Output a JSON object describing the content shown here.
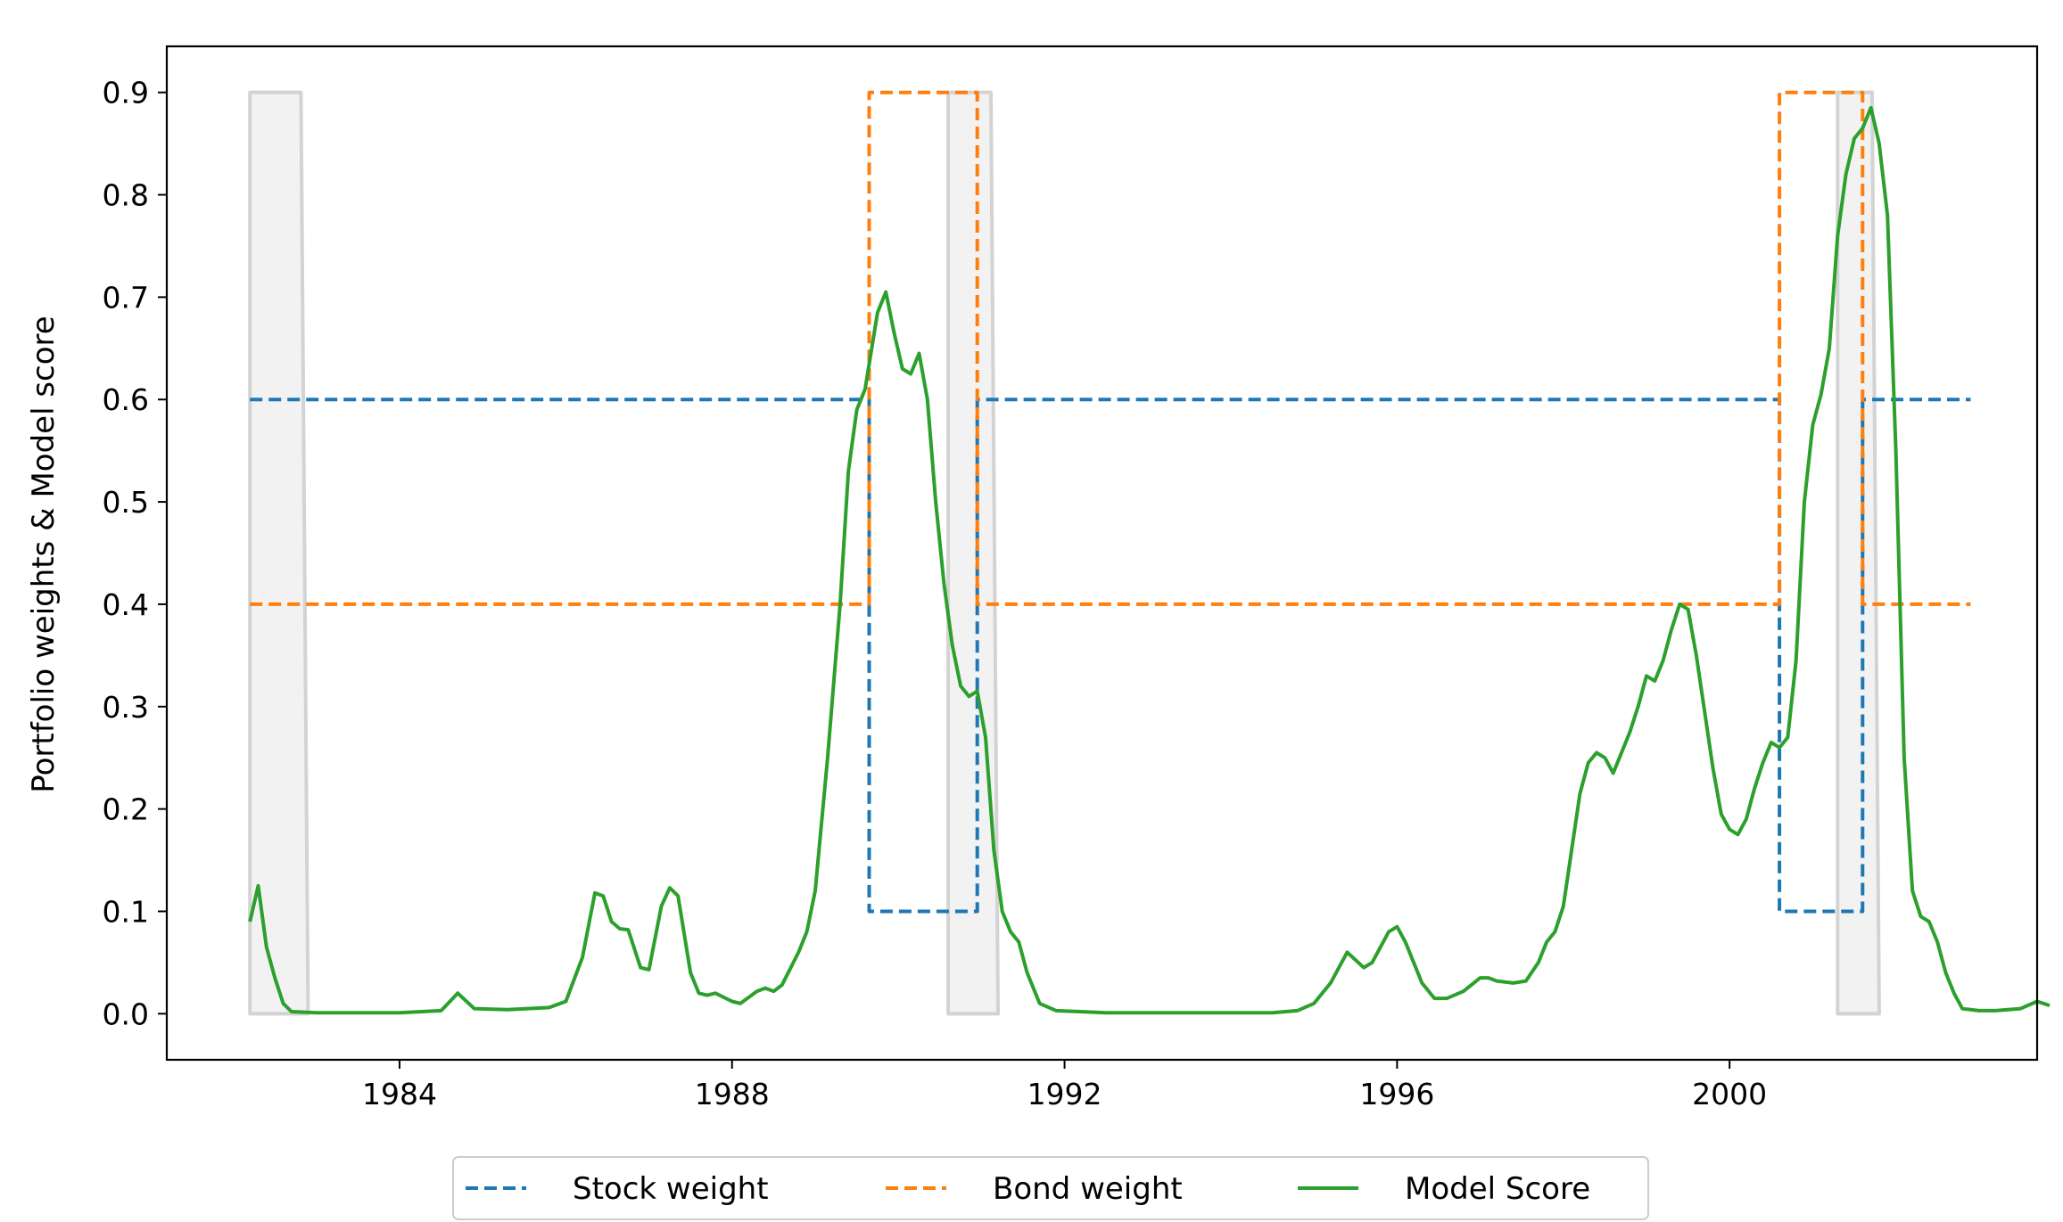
{
  "chart_data": {
    "type": "line",
    "title": "",
    "xlabel": "",
    "ylabel": "Portfolio weights & Model score",
    "xlim": [
      1981.2,
      2003.7
    ],
    "ylim": [
      -0.045,
      0.945
    ],
    "xticks": [
      1984,
      1988,
      1992,
      1996,
      2000
    ],
    "xtick_labels": [
      "1984",
      "1988",
      "1992",
      "1996",
      "2000"
    ],
    "yticks": [
      0.0,
      0.1,
      0.2,
      0.3,
      0.4,
      0.5,
      0.6,
      0.7,
      0.8,
      0.9
    ],
    "ytick_labels": [
      "0.0",
      "0.1",
      "0.2",
      "0.3",
      "0.4",
      "0.5",
      "0.6",
      "0.7",
      "0.8",
      "0.9"
    ],
    "grid": false,
    "legend_position": "bottom-center",
    "shaded_regions": {
      "color": "#d3d3d3",
      "height": 0.9,
      "periods": [
        [
          1982.2,
          1982.9
        ],
        [
          1990.6,
          1991.2
        ],
        [
          2001.3,
          2001.8
        ]
      ]
    },
    "series": [
      {
        "name": "Stock weight",
        "style": "dashed",
        "color": "#1f77b4",
        "points": [
          [
            1982.2,
            0.6
          ],
          [
            1989.65,
            0.6
          ],
          [
            1989.65,
            0.1
          ],
          [
            1990.95,
            0.1
          ],
          [
            1990.95,
            0.6
          ],
          [
            2000.6,
            0.6
          ],
          [
            2000.6,
            0.1
          ],
          [
            2001.6,
            0.1
          ],
          [
            2001.6,
            0.6
          ],
          [
            2002.9,
            0.6
          ]
        ]
      },
      {
        "name": "Bond weight",
        "style": "dashed",
        "color": "#ff7f0e",
        "points": [
          [
            1982.2,
            0.4
          ],
          [
            1989.65,
            0.4
          ],
          [
            1989.65,
            0.9
          ],
          [
            1990.95,
            0.9
          ],
          [
            1990.95,
            0.4
          ],
          [
            2000.6,
            0.4
          ],
          [
            2000.6,
            0.9
          ],
          [
            2001.6,
            0.9
          ],
          [
            2001.6,
            0.4
          ],
          [
            2002.9,
            0.4
          ]
        ]
      },
      {
        "name": "Model Score",
        "style": "solid",
        "color": "#2ca02c",
        "points": [
          [
            1982.2,
            0.09
          ],
          [
            1982.3,
            0.125
          ],
          [
            1982.4,
            0.065
          ],
          [
            1982.5,
            0.035
          ],
          [
            1982.6,
            0.01
          ],
          [
            1982.7,
            0.002
          ],
          [
            1983.0,
            0.001
          ],
          [
            1984.0,
            0.001
          ],
          [
            1984.5,
            0.003
          ],
          [
            1984.7,
            0.02
          ],
          [
            1984.9,
            0.005
          ],
          [
            1985.3,
            0.004
          ],
          [
            1985.8,
            0.006
          ],
          [
            1986.0,
            0.012
          ],
          [
            1986.2,
            0.055
          ],
          [
            1986.35,
            0.118
          ],
          [
            1986.45,
            0.115
          ],
          [
            1986.55,
            0.09
          ],
          [
            1986.65,
            0.083
          ],
          [
            1986.75,
            0.082
          ],
          [
            1986.9,
            0.045
          ],
          [
            1987.0,
            0.043
          ],
          [
            1987.15,
            0.105
          ],
          [
            1987.25,
            0.123
          ],
          [
            1987.35,
            0.115
          ],
          [
            1987.5,
            0.04
          ],
          [
            1987.6,
            0.02
          ],
          [
            1987.7,
            0.018
          ],
          [
            1987.8,
            0.02
          ],
          [
            1988.0,
            0.012
          ],
          [
            1988.1,
            0.01
          ],
          [
            1988.3,
            0.022
          ],
          [
            1988.4,
            0.025
          ],
          [
            1988.5,
            0.022
          ],
          [
            1988.6,
            0.028
          ],
          [
            1988.8,
            0.06
          ],
          [
            1988.9,
            0.08
          ],
          [
            1989.0,
            0.12
          ],
          [
            1989.15,
            0.25
          ],
          [
            1989.3,
            0.4
          ],
          [
            1989.4,
            0.53
          ],
          [
            1989.5,
            0.59
          ],
          [
            1989.6,
            0.61
          ],
          [
            1989.75,
            0.685
          ],
          [
            1989.85,
            0.705
          ],
          [
            1989.95,
            0.665
          ],
          [
            1990.05,
            0.63
          ],
          [
            1990.15,
            0.625
          ],
          [
            1990.25,
            0.645
          ],
          [
            1990.35,
            0.6
          ],
          [
            1990.45,
            0.5
          ],
          [
            1990.55,
            0.42
          ],
          [
            1990.65,
            0.36
          ],
          [
            1990.75,
            0.32
          ],
          [
            1990.85,
            0.31
          ],
          [
            1990.95,
            0.315
          ],
          [
            1991.05,
            0.27
          ],
          [
            1991.15,
            0.16
          ],
          [
            1991.25,
            0.1
          ],
          [
            1991.35,
            0.08
          ],
          [
            1991.45,
            0.07
          ],
          [
            1991.55,
            0.04
          ],
          [
            1991.7,
            0.01
          ],
          [
            1991.9,
            0.003
          ],
          [
            1992.5,
            0.001
          ],
          [
            1994.5,
            0.001
          ],
          [
            1994.8,
            0.003
          ],
          [
            1995.0,
            0.01
          ],
          [
            1995.2,
            0.03
          ],
          [
            1995.4,
            0.06
          ],
          [
            1995.6,
            0.045
          ],
          [
            1995.7,
            0.05
          ],
          [
            1995.9,
            0.08
          ],
          [
            1996.0,
            0.085
          ],
          [
            1996.1,
            0.07
          ],
          [
            1996.3,
            0.03
          ],
          [
            1996.45,
            0.015
          ],
          [
            1996.6,
            0.015
          ],
          [
            1996.8,
            0.022
          ],
          [
            1997.0,
            0.035
          ],
          [
            1997.1,
            0.035
          ],
          [
            1997.2,
            0.032
          ],
          [
            1997.4,
            0.03
          ],
          [
            1997.55,
            0.032
          ],
          [
            1997.7,
            0.05
          ],
          [
            1997.8,
            0.07
          ],
          [
            1997.9,
            0.08
          ],
          [
            1998.0,
            0.105
          ],
          [
            1998.1,
            0.16
          ],
          [
            1998.2,
            0.215
          ],
          [
            1998.3,
            0.245
          ],
          [
            1998.4,
            0.255
          ],
          [
            1998.5,
            0.25
          ],
          [
            1998.6,
            0.235
          ],
          [
            1998.7,
            0.255
          ],
          [
            1998.8,
            0.275
          ],
          [
            1998.9,
            0.3
          ],
          [
            1999.0,
            0.33
          ],
          [
            1999.1,
            0.325
          ],
          [
            1999.2,
            0.345
          ],
          [
            1999.3,
            0.375
          ],
          [
            1999.4,
            0.4
          ],
          [
            1999.5,
            0.395
          ],
          [
            1999.6,
            0.35
          ],
          [
            1999.7,
            0.295
          ],
          [
            1999.8,
            0.24
          ],
          [
            1999.9,
            0.195
          ],
          [
            2000.0,
            0.18
          ],
          [
            2000.1,
            0.175
          ],
          [
            2000.2,
            0.19
          ],
          [
            2000.3,
            0.22
          ],
          [
            2000.4,
            0.245
          ],
          [
            2000.5,
            0.265
          ],
          [
            2000.6,
            0.26
          ],
          [
            2000.7,
            0.27
          ],
          [
            2000.8,
            0.345
          ],
          [
            2000.9,
            0.5
          ],
          [
            2001.0,
            0.575
          ],
          [
            2001.1,
            0.605
          ],
          [
            2001.2,
            0.65
          ],
          [
            2001.3,
            0.76
          ],
          [
            2001.4,
            0.82
          ],
          [
            2001.5,
            0.855
          ],
          [
            2001.6,
            0.865
          ],
          [
            2001.7,
            0.885
          ],
          [
            2001.8,
            0.85
          ],
          [
            2001.9,
            0.78
          ],
          [
            2002.0,
            0.55
          ],
          [
            2002.1,
            0.25
          ],
          [
            2002.2,
            0.12
          ],
          [
            2002.3,
            0.095
          ],
          [
            2002.4,
            0.09
          ],
          [
            2002.5,
            0.07
          ],
          [
            2002.6,
            0.04
          ],
          [
            2002.7,
            0.02
          ],
          [
            2002.8,
            0.005
          ],
          [
            2003.0,
            0.003
          ],
          [
            2003.2,
            0.003
          ],
          [
            2003.5,
            0.005
          ],
          [
            2003.7,
            0.012
          ],
          [
            2003.85,
            0.008
          ]
        ]
      }
    ]
  }
}
